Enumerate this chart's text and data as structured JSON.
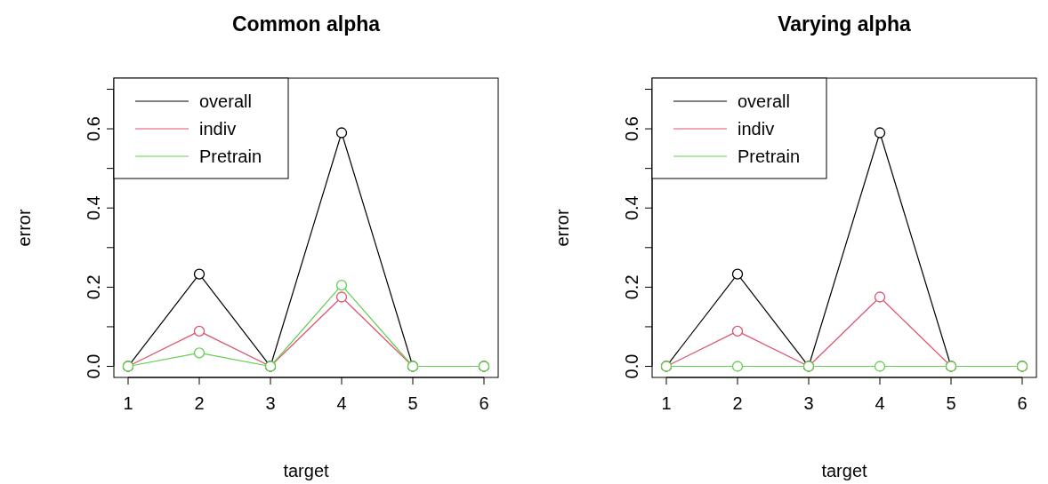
{
  "chart_data": [
    {
      "type": "line",
      "title": "Common alpha",
      "xlabel": "target",
      "ylabel": "error",
      "x": [
        1,
        2,
        3,
        4,
        5,
        6
      ],
      "xlim": [
        0.8,
        6.2
      ],
      "xticks": [
        1,
        2,
        3,
        4,
        5,
        6
      ],
      "ylim": [
        -0.028,
        0.728
      ],
      "yticks": [
        {
          "value": 0,
          "label": "0.0"
        },
        {
          "value": 0.1,
          "label": null
        },
        0.2,
        {
          "value": 0.3,
          "label": null
        },
        0.4,
        {
          "value": 0.5,
          "label": null
        },
        0.6,
        {
          "value": 0.7,
          "label": null
        }
      ],
      "marker": "circle",
      "line_style": "solid",
      "legend": "top left",
      "grid": false,
      "series": [
        {
          "name": "overall",
          "color": "#000000",
          "values": [
            0,
            0.233,
            0,
            0.59,
            0,
            0
          ]
        },
        {
          "name": "indiv",
          "color": "#df536b",
          "values": [
            0,
            0.089,
            0,
            0.175,
            0,
            0
          ]
        },
        {
          "name": "Pretrain",
          "color": "#61d04f",
          "values": [
            0,
            0.034,
            0,
            0.205,
            0,
            0
          ]
        }
      ]
    },
    {
      "type": "line",
      "title": "Varying alpha",
      "xlabel": "target",
      "ylabel": "error",
      "x": [
        1,
        2,
        3,
        4,
        5,
        6
      ],
      "xlim": [
        0.8,
        6.2
      ],
      "xticks": [
        1,
        2,
        3,
        4,
        5,
        6
      ],
      "ylim": [
        -0.028,
        0.728
      ],
      "yticks": [
        {
          "value": 0,
          "label": "0.0"
        },
        {
          "value": 0.1,
          "label": null
        },
        0.2,
        {
          "value": 0.3,
          "label": null
        },
        0.4,
        {
          "value": 0.5,
          "label": null
        },
        0.6,
        {
          "value": 0.7,
          "label": null
        }
      ],
      "marker": "circle",
      "line_style": "solid",
      "legend": "top left",
      "grid": false,
      "series": [
        {
          "name": "overall",
          "color": "#000000",
          "values": [
            0,
            0.233,
            0,
            0.59,
            0,
            0
          ]
        },
        {
          "name": "indiv",
          "color": "#df536b",
          "values": [
            0,
            0.089,
            0,
            0.175,
            0,
            0
          ]
        },
        {
          "name": "Pretrain",
          "color": "#61d04f",
          "values": [
            0,
            0,
            0,
            0,
            0,
            0
          ]
        }
      ]
    }
  ]
}
